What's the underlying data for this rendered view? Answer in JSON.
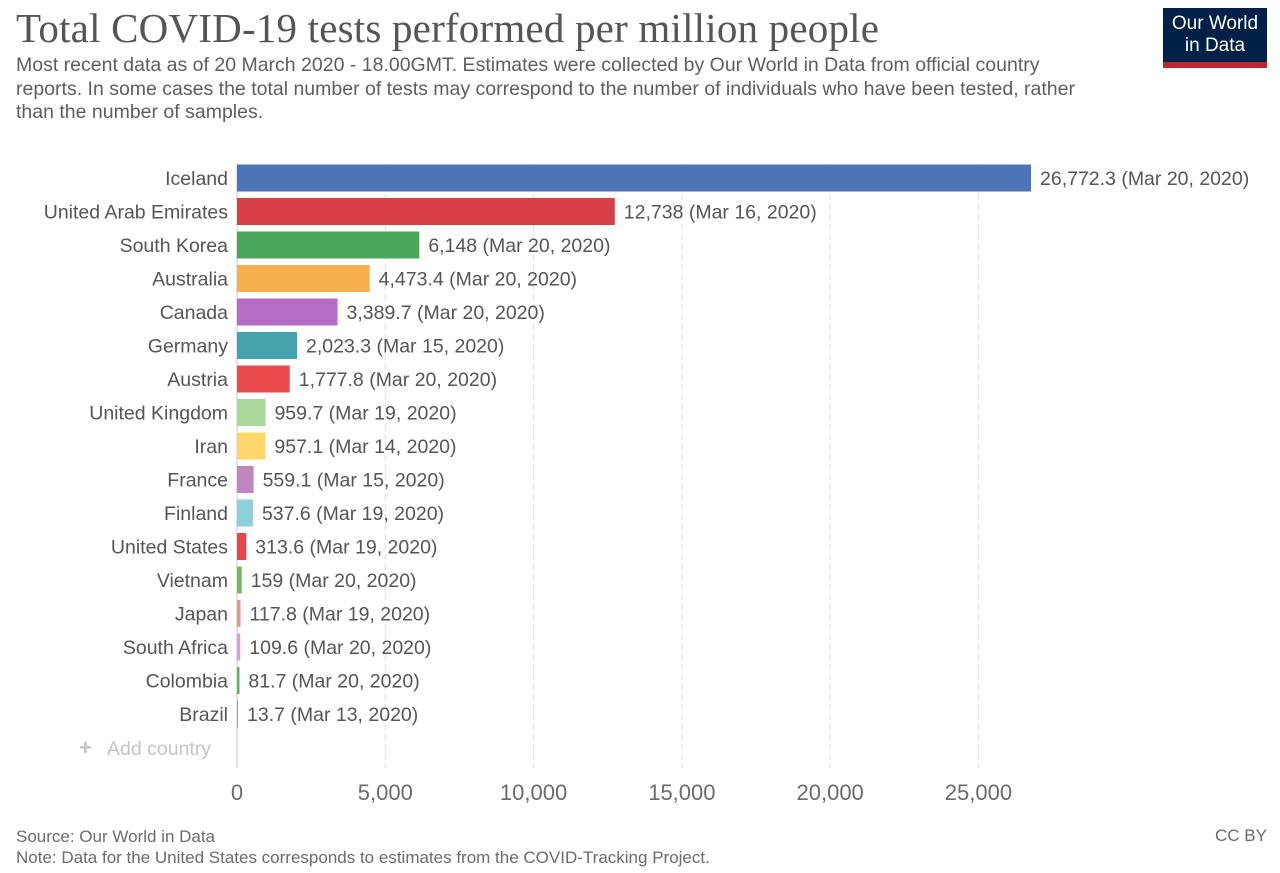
{
  "title": "Total COVID-19 tests performed per million people",
  "subtitle": "Most recent data as of 20 March 2020 - 18.00GMT. Estimates were collected by Our World in Data from official country reports. In some cases the total number of tests may correspond to the number of individuals who have been tested, rather than the number of samples.",
  "logo": {
    "line1": "Our World",
    "line2": "in Data"
  },
  "add_country_label": "Add country",
  "footer": {
    "source": "Source: Our World in Data",
    "note": "Note: Data for the United States corresponds to estimates from the COVID-Tracking Project.",
    "license": "CC BY"
  },
  "chart_data": {
    "type": "bar",
    "orientation": "horizontal",
    "title": "Total COVID-19 tests performed per million people",
    "xlim": [
      0,
      26772.3
    ],
    "xticks": [
      0,
      5000,
      10000,
      15000,
      20000,
      25000
    ],
    "xtick_labels": [
      "0",
      "5,000",
      "10,000",
      "15,000",
      "20,000",
      "25,000"
    ],
    "grid": "vertical dashed",
    "categories": [
      "Iceland",
      "United Arab Emirates",
      "South Korea",
      "Australia",
      "Canada",
      "Germany",
      "Austria",
      "United Kingdom",
      "Iran",
      "France",
      "Finland",
      "United States",
      "Vietnam",
      "Japan",
      "South Africa",
      "Colombia",
      "Brazil"
    ],
    "values": [
      26772.3,
      12738,
      6148,
      4473.4,
      3389.7,
      2023.3,
      1777.8,
      959.7,
      957.1,
      559.1,
      537.6,
      313.6,
      159,
      117.8,
      109.6,
      81.7,
      13.7
    ],
    "value_labels": [
      "26,772.3",
      "12,738",
      "6,148",
      "4,473.4",
      "3,389.7",
      "2,023.3",
      "1,777.8",
      "959.7",
      "957.1",
      "559.1",
      "537.6",
      "313.6",
      "159",
      "117.8",
      "109.6",
      "81.7",
      "13.7"
    ],
    "dates": [
      "Mar 20, 2020",
      "Mar 16, 2020",
      "Mar 20, 2020",
      "Mar 20, 2020",
      "Mar 20, 2020",
      "Mar 15, 2020",
      "Mar 20, 2020",
      "Mar 19, 2020",
      "Mar 14, 2020",
      "Mar 15, 2020",
      "Mar 19, 2020",
      "Mar 19, 2020",
      "Mar 20, 2020",
      "Mar 19, 2020",
      "Mar 20, 2020",
      "Mar 20, 2020",
      "Mar 13, 2020"
    ],
    "colors": [
      "#4d74b7",
      "#d63f44",
      "#4aa65a",
      "#f6b04e",
      "#b46cc4",
      "#46a2ac",
      "#ea4a4c",
      "#aad79c",
      "#fed66a",
      "#c086c0",
      "#8cd0db",
      "#e8454b",
      "#71b85a",
      "#f0928a",
      "#d4a0d0",
      "#5caf6c",
      "#a0a0a0"
    ]
  }
}
